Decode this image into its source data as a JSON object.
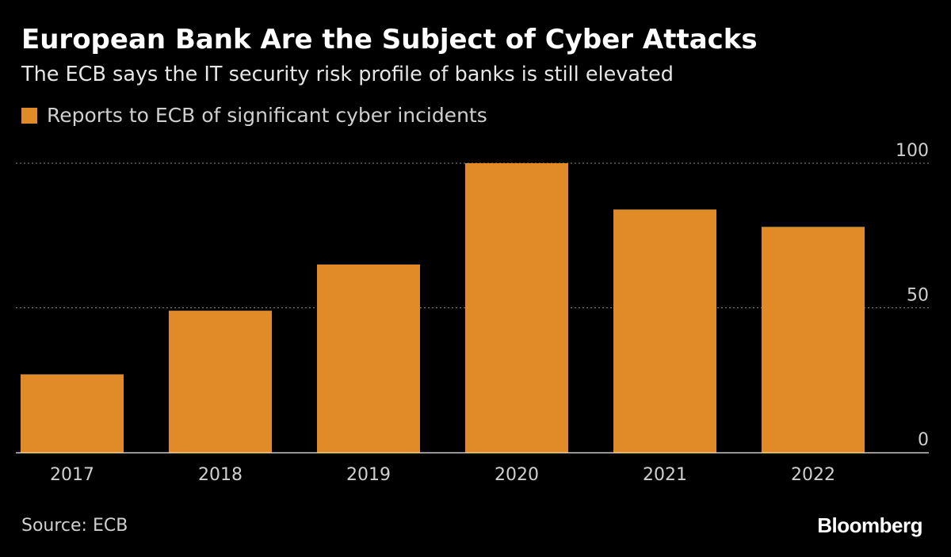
{
  "header": {
    "title": "European Bank Are the Subject of Cyber Attacks",
    "subtitle": "The ECB says the IT security risk profile of banks is still elevated"
  },
  "legend": {
    "label": "Reports to ECB of significant cyber incidents",
    "color": "#e08b27"
  },
  "footer": {
    "source": "Source: ECB",
    "brand": "Bloomberg"
  },
  "chart_data": {
    "type": "bar",
    "title": "European Bank Are the Subject of Cyber Attacks",
    "subtitle": "The ECB says the IT security risk profile of banks is still elevated",
    "categories": [
      "2017",
      "2018",
      "2019",
      "2020",
      "2021",
      "2022"
    ],
    "series": [
      {
        "name": "Reports to ECB of significant cyber incidents",
        "values": [
          27,
          49,
          65,
          100,
          84,
          78
        ],
        "color": "#e08b27"
      }
    ],
    "ylim": [
      0,
      100
    ],
    "yticks": [
      0,
      50,
      100
    ],
    "xlabel": "",
    "ylabel": "",
    "y_axis_side": "right",
    "grid": true,
    "grid_style": "dotted",
    "legend_position": "top-left"
  }
}
